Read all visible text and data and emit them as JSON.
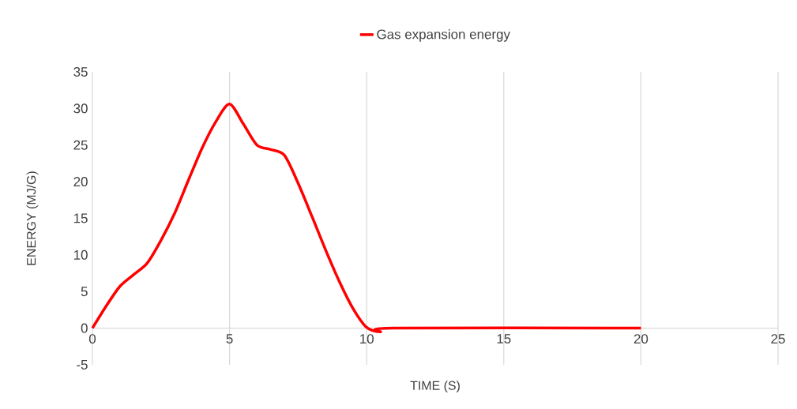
{
  "chart_data": {
    "type": "line",
    "xlabel": "TIME (S)",
    "ylabel": "ENERGY (MJ/G)",
    "xlim": [
      0,
      25
    ],
    "xticks": [
      0,
      5,
      10,
      15,
      20,
      25
    ],
    "ylim": [
      -5,
      35
    ],
    "yticks": [
      -5,
      0,
      5,
      10,
      15,
      20,
      25,
      30,
      35
    ],
    "grid": "x",
    "legend": "top",
    "marker": "none",
    "line_style": "solid",
    "series": [
      {
        "name": "Gas expansion energy",
        "color": "#ff0000",
        "x": [
          0,
          0.5,
          1,
          1.5,
          2,
          2.5,
          3,
          3.5,
          4,
          4.5,
          5,
          5.5,
          6,
          6.5,
          7,
          7.5,
          8,
          8.5,
          9,
          9.5,
          10,
          10.5,
          11,
          20
        ],
        "values": [
          0,
          3,
          5.7,
          7.3,
          8.9,
          12,
          15.7,
          20.2,
          24.6,
          28.2,
          30.6,
          27.9,
          25,
          24.4,
          23.6,
          19.8,
          15.3,
          10.7,
          6.4,
          2.7,
          0.1,
          -0.5,
          0,
          0
        ]
      }
    ]
  }
}
